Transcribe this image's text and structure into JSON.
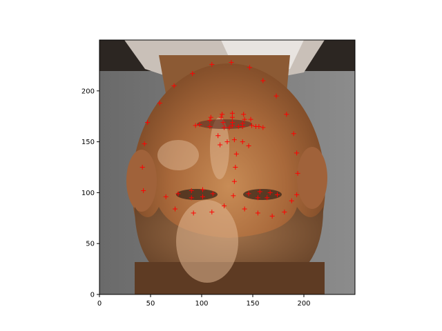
{
  "chart_data": {
    "type": "scatter",
    "title": "",
    "xlabel": "",
    "ylabel": "",
    "xlim": [
      0,
      250
    ],
    "ylim": [
      0,
      250
    ],
    "y_axis_origin": "bottom",
    "grid": false,
    "legend": "none",
    "background": "upside-down photograph of a bearded man's face",
    "marker": "+",
    "marker_color": "#ff0000",
    "x_ticks": [
      0,
      50,
      100,
      150,
      200
    ],
    "y_ticks": [
      0,
      50,
      100,
      150,
      200
    ],
    "x_tick_labels": [
      "0",
      "50",
      "100",
      "150",
      "200"
    ],
    "y_tick_labels": [
      "0",
      "50",
      "100",
      "150",
      "200"
    ],
    "series": [
      {
        "points": [
          [
            43,
            102
          ],
          [
            42,
            125
          ],
          [
            44,
            148
          ],
          [
            47,
            169
          ],
          [
            59,
            188
          ],
          [
            73,
            205
          ],
          [
            91,
            217
          ],
          [
            110,
            226
          ],
          [
            129,
            228
          ],
          [
            147,
            223
          ],
          [
            160,
            210
          ],
          [
            173,
            195
          ],
          [
            183,
            177
          ],
          [
            190,
            158
          ],
          [
            193,
            139
          ],
          [
            194,
            119
          ],
          [
            193,
            98
          ],
          [
            65,
            96
          ],
          [
            74,
            84
          ],
          [
            92,
            80
          ],
          [
            110,
            81
          ],
          [
            122,
            87
          ],
          [
            142,
            84
          ],
          [
            155,
            80
          ],
          [
            169,
            77
          ],
          [
            181,
            81
          ],
          [
            188,
            92
          ],
          [
            77,
            99
          ],
          [
            90,
            102
          ],
          [
            101,
            103
          ],
          [
            111,
            99
          ],
          [
            101,
            96
          ],
          [
            90,
            95
          ],
          [
            146,
            99
          ],
          [
            157,
            101
          ],
          [
            167,
            100
          ],
          [
            174,
            98
          ],
          [
            164,
            95
          ],
          [
            155,
            95
          ],
          [
            131,
            97
          ],
          [
            132,
            111
          ],
          [
            133,
            125
          ],
          [
            134,
            138
          ],
          [
            118,
            147
          ],
          [
            125,
            150
          ],
          [
            132,
            152
          ],
          [
            140,
            150
          ],
          [
            146,
            146
          ],
          [
            94,
            166
          ],
          [
            98,
            167
          ],
          [
            108,
            171
          ],
          [
            119,
            174
          ],
          [
            130,
            174
          ],
          [
            142,
            172
          ],
          [
            149,
            166
          ],
          [
            156,
            165
          ],
          [
            160,
            164
          ],
          [
            108,
            165
          ],
          [
            122,
            164
          ],
          [
            130,
            166
          ],
          [
            140,
            165
          ],
          [
            121,
            169
          ],
          [
            130,
            169
          ],
          [
            140,
            168
          ],
          [
            109,
            174
          ],
          [
            120,
            177
          ],
          [
            130,
            178
          ],
          [
            141,
            177
          ],
          [
            148,
            172
          ],
          [
            153,
            165
          ],
          [
            116,
            156
          ],
          [
            127,
            164
          ],
          [
            136,
            165
          ]
        ]
      }
    ]
  }
}
